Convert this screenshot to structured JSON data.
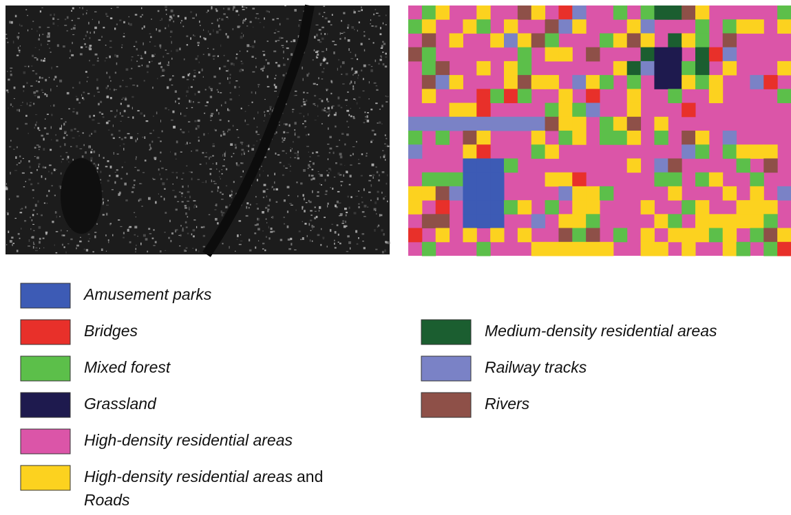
{
  "legend": {
    "columns": [
      [
        {
          "label": "Amusement parks",
          "color": "#3d5bb5"
        },
        {
          "label": "Bridges",
          "color": "#e8302a"
        },
        {
          "label": "Mixed forest",
          "color": "#5cbf4a"
        },
        {
          "label": "Grassland",
          "color": "#1e1a4e"
        },
        {
          "label": "High-density residential areas",
          "color": "#db55a8"
        },
        {
          "label": [
            "High-density residential areas",
            "and",
            "Roads"
          ],
          "color": "#fcd21f"
        }
      ],
      [
        {
          "label": "Medium-density residential areas",
          "color": "#1b5e30"
        },
        {
          "label": "Railway tracks",
          "color": "#7a82c6"
        },
        {
          "label": "Rivers",
          "color": "#8e5048"
        }
      ]
    ]
  }
}
